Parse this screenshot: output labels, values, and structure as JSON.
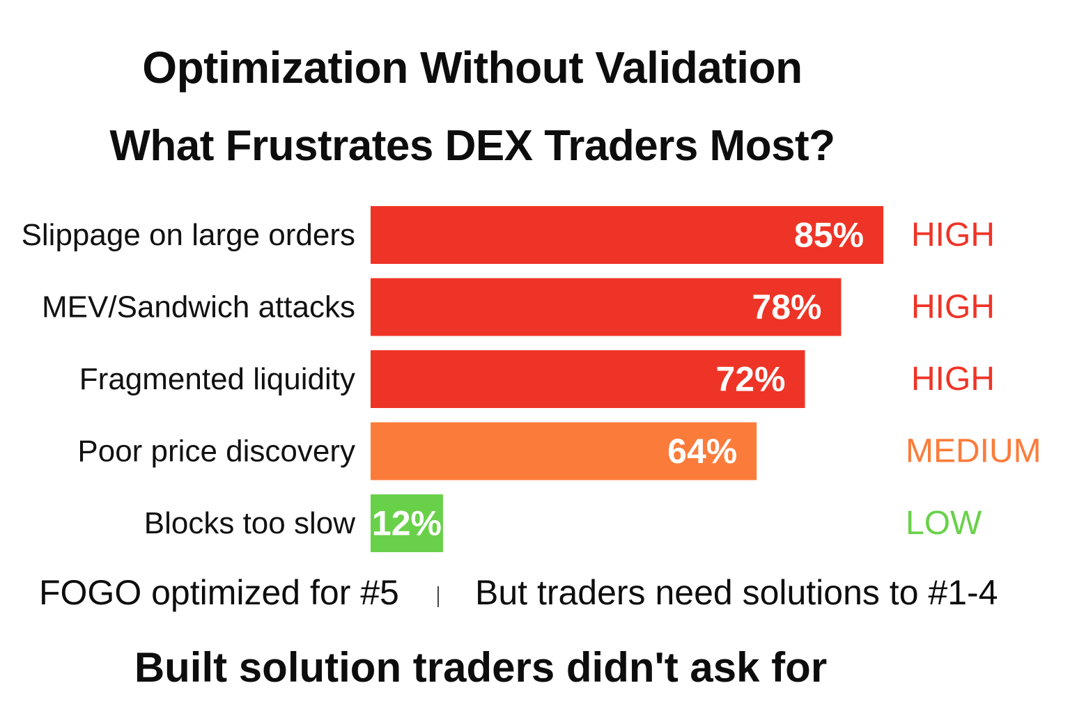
{
  "chart_data": {
    "type": "bar",
    "orientation": "horizontal",
    "title": "Optimization Without Validation",
    "subtitle": "What Frustrates DEX Traders Most?",
    "categories": [
      "Slippage on large orders",
      "MEV/Sandwich attacks",
      "Fragmented liquidity",
      "Poor price discovery",
      "Blocks too slow"
    ],
    "values": [
      85,
      78,
      72,
      64,
      12
    ],
    "value_labels": [
      "85%",
      "78%",
      "72%",
      "64%",
      "12%"
    ],
    "severity": [
      "HIGH",
      "HIGH",
      "HIGH",
      "MEDIUM",
      "LOW"
    ],
    "unit": "%",
    "xlim": [
      0,
      100
    ],
    "grid": false,
    "legend": "none",
    "colors": {
      "HIGH": "#ee3426",
      "MEDIUM": "#fb7c3a",
      "LOW": "#69d149"
    }
  },
  "notes": {
    "left": "FOGO optimized for #5",
    "right": "But traders need solutions to #1-4"
  },
  "conclusion": "Built solution traders didn't ask for"
}
